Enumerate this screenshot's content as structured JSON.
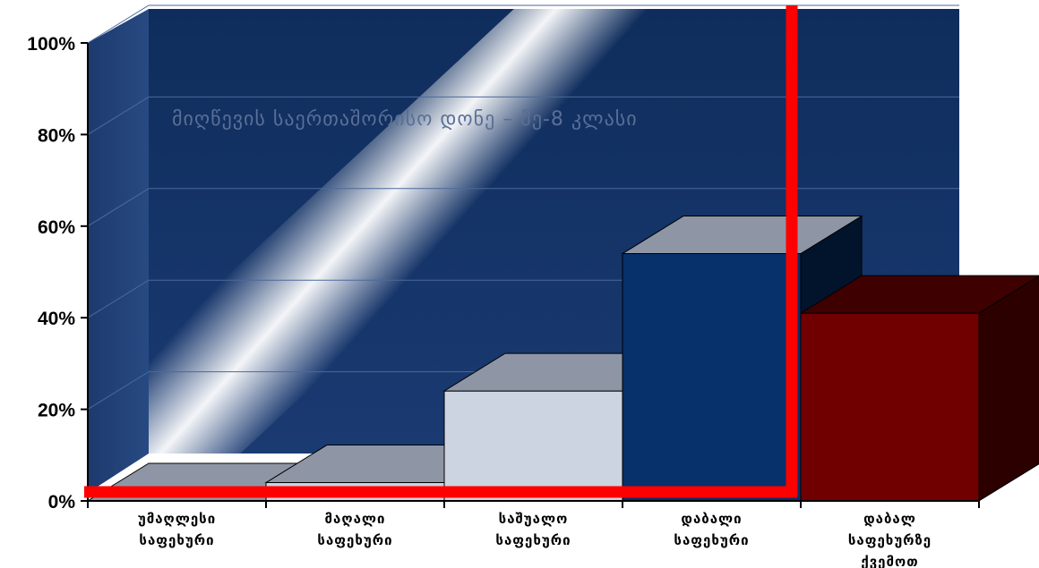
{
  "chart_data": {
    "type": "bar",
    "title": "მიღწევის საერთაშორისო დონე – მე-8 კლასი",
    "categories": [
      [
        "უმაღლესი",
        "საფეხური"
      ],
      [
        "მაღალი",
        "საფეხური"
      ],
      [
        "საშუალო",
        "საფეხური"
      ],
      [
        "დაბალი",
        "საფეხური"
      ],
      [
        "დაბალ",
        "საფეხურზე",
        "ქვემოთ"
      ]
    ],
    "values": [
      0,
      4,
      24,
      54,
      41
    ],
    "y_ticks": [
      "0%",
      "20%",
      "40%",
      "60%",
      "80%",
      "100%"
    ],
    "ylim": [
      0,
      100
    ],
    "bar_colors": [
      "#8e96a6",
      "#cbd4e0",
      "#cbd4e0",
      "#06316b",
      "#700000"
    ],
    "background_color": "#13336a",
    "highlight_color": "#ff0000",
    "grid": true
  }
}
